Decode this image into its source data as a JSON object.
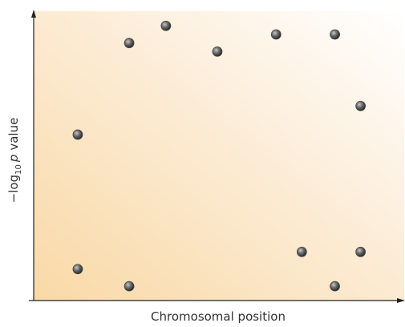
{
  "chart_data": {
    "type": "scatter",
    "xlabel": "Chromosomal position",
    "ylabel": {
      "prefix": "−log",
      "subscript": "10",
      "italic": "p",
      "suffix": "value"
    },
    "x": [
      12,
      12,
      26,
      26,
      36,
      50,
      66,
      73,
      82,
      82,
      89,
      89
    ],
    "values": [
      58,
      11,
      90,
      5,
      96,
      87,
      93,
      17,
      93,
      5,
      68,
      17
    ],
    "color": "#4a4a4a",
    "xlim": [
      0,
      100
    ],
    "ylim": [
      0,
      100
    ]
  }
}
